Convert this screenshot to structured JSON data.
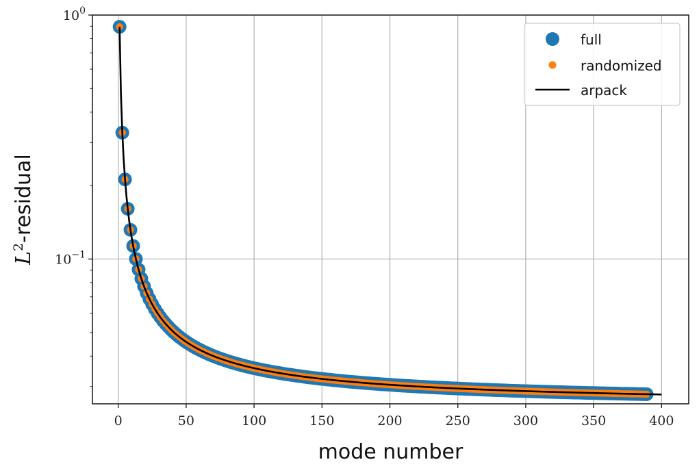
{
  "chart_data": {
    "type": "scatter",
    "xlabel": "mode number",
    "ylabel": "-residual",
    "ylabel_math": "L",
    "ylabel_sup": "2",
    "x_ticks": [
      0,
      50,
      100,
      150,
      200,
      250,
      300,
      350,
      400
    ],
    "y_ticks": [
      {
        "value": 1,
        "base": "10",
        "exp": "0"
      },
      {
        "value": 0.1,
        "base": "10",
        "exp": "−1"
      }
    ],
    "xlim": [
      -19,
      420
    ],
    "ylim": [
      0.0255,
      1.0
    ],
    "y_scale": "log",
    "grid": true,
    "legend_position": "top-right",
    "curve": {
      "a": 0.87,
      "p": 0.955,
      "c": 0.025,
      "x0": 1.0
    },
    "series": [
      {
        "name": "full",
        "kind": "marker-large",
        "color": "#1f77b4",
        "x_range": [
          1,
          390
        ],
        "step": 2
      },
      {
        "name": "randomized",
        "kind": "marker-small",
        "color": "#ff7f0e",
        "x_range": [
          1,
          390
        ],
        "step": 2
      },
      {
        "name": "arpack",
        "kind": "line",
        "color": "#000000",
        "x_range": [
          1,
          400
        ]
      }
    ]
  }
}
